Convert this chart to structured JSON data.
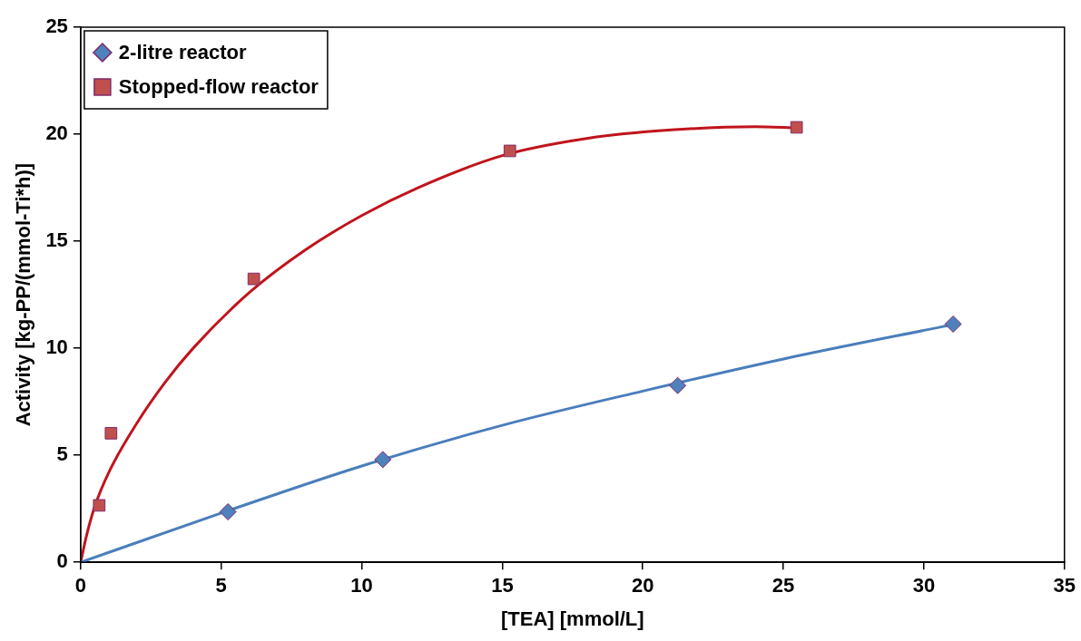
{
  "chart_data": {
    "type": "scatter",
    "xlabel": "[TEA] [mmol/L]",
    "ylabel": "Activity [kg-PP/(mmol-Ti*h)]",
    "xlim": [
      0,
      35
    ],
    "xticks": [
      0,
      5,
      10,
      15,
      20,
      25,
      30,
      35
    ],
    "ylim": [
      0,
      25
    ],
    "yticks": [
      0,
      5,
      10,
      15,
      20,
      25
    ],
    "grid": false,
    "legend": "top left",
    "series": [
      {
        "name": "2-litre reactor",
        "type": "scatter",
        "marker": "diamond",
        "color": "#4f81bd",
        "x": [
          5.24,
          10.75,
          21.24,
          31.04
        ],
        "values": [
          2.36,
          4.8,
          8.26,
          11.13
        ]
      },
      {
        "name": "Stopped-flow reactor",
        "type": "scatter",
        "marker": "square",
        "color": "#c0504d",
        "x": [
          0.66,
          1.08,
          6.16,
          15.27,
          25.47
        ],
        "values": [
          2.66,
          6.03,
          13.24,
          19.22,
          20.32
        ]
      },
      {
        "type": "line",
        "marker": "none",
        "color": "#4a7ebb",
        "x": [
          0,
          5,
          10,
          15,
          20,
          25,
          31
        ],
        "values": [
          0,
          2.3,
          4.5,
          6.4,
          8.0,
          9.5,
          11.1
        ]
      },
      {
        "type": "line",
        "marker": "none",
        "color": "#c0141c",
        "x": [
          0,
          0.2,
          0.5,
          1,
          2,
          3,
          4,
          6,
          8,
          10,
          12,
          15,
          18,
          21,
          24,
          25.5
        ],
        "values": [
          0,
          1.2,
          2.6,
          4.2,
          6.5,
          8.4,
          10.0,
          12.6,
          14.6,
          16.2,
          17.5,
          19.0,
          19.8,
          20.2,
          20.35,
          20.3
        ]
      }
    ]
  }
}
